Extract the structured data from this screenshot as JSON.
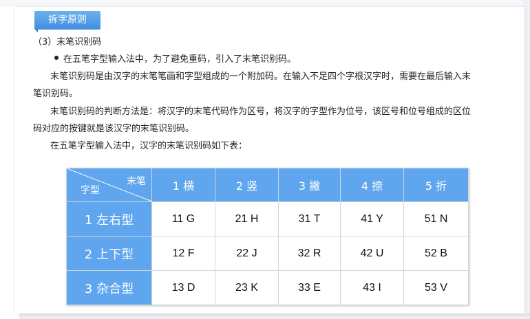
{
  "section_tag": "拆字原则",
  "heading": "（3）末笔识别码",
  "bullet_text": "在五笔字型输入法中，为了避免重码，引入了末笔识别码。",
  "para1_line1": "末笔识别码是由汉字的末笔笔画和字型组成的一个附加码。在输入不足四个字根汉字时，需要在最后输入末",
  "para1_line2": "笔识别码。",
  "para2_line1": "末笔识别码的判断方法是：将汉字的末笔代码作为区号，将汉字的字型作为位号，该区号和位号组成的区位",
  "para2_line2": "码对应的按键就是该汉字的末笔识别码。",
  "para3": "在五笔字型输入法中，汉字的末笔识别码如下表：",
  "table": {
    "corner_top": "末笔",
    "corner_bottom": "字型",
    "columns": [
      "1 横",
      "2 竖",
      "3 撇",
      "4 捺",
      "5 折"
    ],
    "rows": [
      {
        "label": "1 左右型",
        "cells": [
          "11 G",
          "21 H",
          "31 T",
          "41 Y",
          "51 N"
        ]
      },
      {
        "label": "2 上下型",
        "cells": [
          "12 F",
          "22 J",
          "32 R",
          "42 U",
          "52 B"
        ]
      },
      {
        "label": "3 杂合型",
        "cells": [
          "13 D",
          "23 K",
          "33 E",
          "43 I",
          "53 V"
        ]
      }
    ]
  },
  "colors": {
    "accent": "#5fa6ee",
    "tag": "#4a97e4"
  }
}
